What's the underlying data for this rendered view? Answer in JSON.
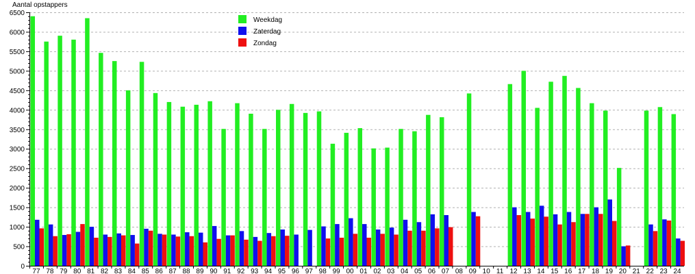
{
  "chart_data": {
    "type": "bar",
    "title": "",
    "ylabel": "Aantal opstappers",
    "xlabel": "",
    "ylim": [
      0,
      6500
    ],
    "y_ticks": [
      0,
      500,
      1000,
      1500,
      2000,
      2500,
      3000,
      3500,
      4000,
      4500,
      5000,
      5500,
      6000,
      6500
    ],
    "y_minor_step": 100,
    "grid": "horizontal-dashed",
    "legend_position": "top-center",
    "categories": [
      "77",
      "78",
      "79",
      "80",
      "81",
      "82",
      "83",
      "84",
      "85",
      "86",
      "87",
      "88",
      "89",
      "90",
      "91",
      "92",
      "93",
      "94",
      "95",
      "96",
      "97",
      "98",
      "99",
      "00",
      "01",
      "02",
      "03",
      "04",
      "05",
      "06",
      "07",
      "08",
      "09",
      "10",
      "11",
      "12",
      "13",
      "14",
      "15",
      "16",
      "17",
      "18",
      "19",
      "20",
      "21",
      "22",
      "23",
      "24"
    ],
    "series": [
      {
        "name": "Weekdag",
        "color": "#22ee22",
        "values": [
          6400,
          5750,
          5900,
          5800,
          6350,
          5460,
          5250,
          4500,
          5230,
          4430,
          4200,
          4080,
          4130,
          4220,
          3510,
          4170,
          3900,
          3510,
          4000,
          4150,
          3920,
          3960,
          3130,
          3410,
          3530,
          3010,
          3030,
          3510,
          3450,
          3870,
          3810,
          null,
          4420,
          null,
          null,
          4660,
          5000,
          4050,
          4720,
          4870,
          4560,
          4170,
          3980,
          2510,
          null,
          3980,
          4070,
          3890
        ]
      },
      {
        "name": "Zaterdag",
        "color": "#1010ee",
        "values": [
          1180,
          1060,
          790,
          870,
          1000,
          800,
          830,
          790,
          950,
          820,
          800,
          860,
          850,
          1020,
          780,
          890,
          740,
          840,
          930,
          800,
          920,
          1010,
          1070,
          1220,
          1070,
          930,
          980,
          1180,
          1120,
          1320,
          1300,
          null,
          1380,
          null,
          null,
          1500,
          1380,
          1540,
          1320,
          1380,
          1330,
          1500,
          1700,
          500,
          null,
          1060,
          1190,
          700
        ]
      },
      {
        "name": "Zondag",
        "color": "#ee1010",
        "values": [
          960,
          760,
          810,
          1070,
          720,
          740,
          780,
          570,
          900,
          800,
          750,
          760,
          600,
          690,
          780,
          670,
          640,
          760,
          770,
          null,
          null,
          700,
          720,
          820,
          720,
          820,
          800,
          900,
          900,
          960,
          990,
          null,
          1270,
          null,
          null,
          1300,
          1210,
          1260,
          1060,
          1120,
          1330,
          1330,
          1150,
          520,
          null,
          890,
          1160,
          640
        ]
      }
    ]
  }
}
